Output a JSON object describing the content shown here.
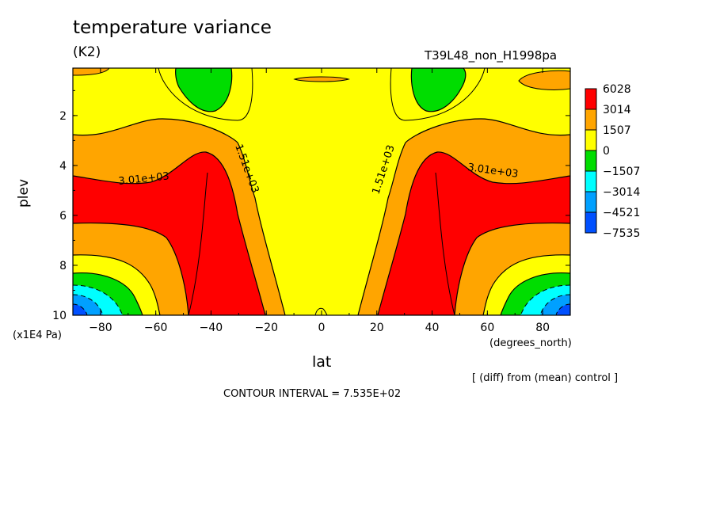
{
  "chart_data": {
    "type": "heatmap",
    "title": "temperature variance",
    "units": "(K2)",
    "subtitle": "T39L48_non_H1998pa",
    "xlabel": "lat",
    "ylabel": "plev",
    "xunits": "(degrees_north)",
    "yunits": "(x1E4 Pa)",
    "xlim": [
      -90,
      90
    ],
    "ylim": [
      10,
      0.1
    ],
    "xticks": [
      "-80",
      "-60",
      "-40",
      "-20",
      "0",
      "20",
      "40",
      "60",
      "80"
    ],
    "yticks": [
      "2",
      "4",
      "6",
      "8",
      "10"
    ],
    "legend": {
      "placement": "right",
      "labels": [
        "6028",
        "3014",
        "1507",
        "0",
        "-1507",
        "-3014",
        "-4521",
        "-7535"
      ],
      "colors": [
        "#ff0000",
        "#ffa500",
        "#ffff00",
        "#00dd00",
        "#00ffff",
        "#00a0ff",
        "#0050ff"
      ]
    },
    "contour_labels": [
      "3.01e+03",
      "1.51e+03",
      "1.51e+03",
      "3.01e+03"
    ],
    "contour_interval": "CONTOUR INTERVAL = 7.535E+02",
    "note": "[ (diff) from (mean) control ]"
  }
}
